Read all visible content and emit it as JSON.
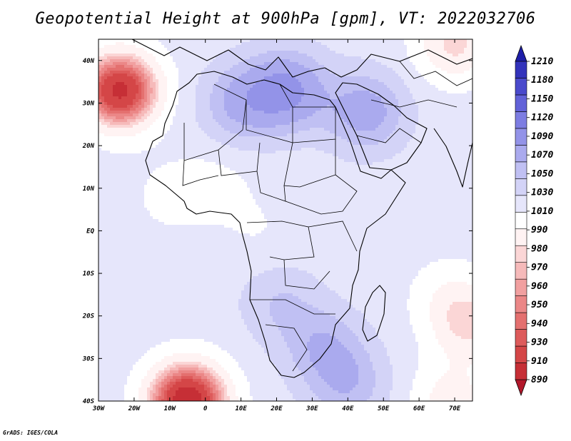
{
  "title": "Geopotential Height at 900hPa [gpm], VT: 2022032706",
  "credit": "GrADS: IGES/COLA",
  "map": {
    "lon_range": [
      -30,
      75
    ],
    "lat_range": [
      -40,
      45
    ],
    "x_ticks": [
      "30W",
      "20W",
      "10W",
      "0",
      "10E",
      "20E",
      "30E",
      "40E",
      "50E",
      "60E",
      "70E"
    ],
    "y_ticks": [
      "40S",
      "30S",
      "20S",
      "10S",
      "EQ",
      "10N",
      "20N",
      "30N",
      "40N"
    ]
  },
  "colorbar": {
    "labels": [
      "890",
      "910",
      "930",
      "940",
      "950",
      "960",
      "970",
      "980",
      "990",
      "1010",
      "1030",
      "1050",
      "1070",
      "1090",
      "1120",
      "1150",
      "1180",
      "1210"
    ],
    "colors_bottom_to_top": [
      "#b2182b",
      "#c62f36",
      "#d44647",
      "#dd5b5b",
      "#e4706f",
      "#eb8787",
      "#f1a0a0",
      "#f6baba",
      "#fbd6d6",
      "#fff3f3",
      "#ffffff",
      "#e6e6fb",
      "#d3d3f7",
      "#c0c0f3",
      "#aaaaee",
      "#9393e8",
      "#7d7de2",
      "#6262d8",
      "#4a4acc",
      "#3333bb",
      "#1e1ea8"
    ]
  },
  "chart_data": {
    "type": "heatmap",
    "title": "Geopotential Height at 900hPa [gpm], VT: 2022032706",
    "x_domain": [
      -30,
      75
    ],
    "y_domain": [
      -40,
      45
    ],
    "contour_levels": [
      890,
      910,
      930,
      940,
      950,
      960,
      970,
      980,
      990,
      1010,
      1030,
      1050,
      1070,
      1090,
      1120,
      1150,
      1180,
      1210
    ],
    "background_value": 1040,
    "features": [
      {
        "kind": "low",
        "lon": -24,
        "lat": 33,
        "value": 905
      },
      {
        "kind": "low",
        "lon": -5,
        "lat": -40,
        "value": 890
      },
      {
        "kind": "high",
        "lon": 23,
        "lat": 33,
        "value": 1125
      },
      {
        "kind": "high",
        "lon": 45,
        "lat": 28,
        "value": 1105
      },
      {
        "kind": "high",
        "lon": 10,
        "lat": 30,
        "value": 1095
      },
      {
        "kind": "high",
        "lon": 33,
        "lat": -27,
        "value": 1085
      },
      {
        "kind": "high",
        "lon": 40,
        "lat": -36,
        "value": 1085
      },
      {
        "kind": "high",
        "lon": 21,
        "lat": -17,
        "value": 1070
      },
      {
        "kind": "low",
        "lon": 3,
        "lat": 11,
        "value": 1025
      },
      {
        "kind": "low",
        "lon": -10,
        "lat": 8,
        "value": 1025
      },
      {
        "kind": "low",
        "lon": 15,
        "lat": 0,
        "value": 1030
      },
      {
        "kind": "low",
        "lon": 68,
        "lat": -15,
        "value": 1020
      },
      {
        "kind": "low",
        "lon": 74,
        "lat": -22,
        "value": 990
      },
      {
        "kind": "low",
        "lon": 70,
        "lat": 44,
        "value": 985
      },
      {
        "kind": "low",
        "lon": 69,
        "lat": -40,
        "value": 1000
      }
    ]
  }
}
